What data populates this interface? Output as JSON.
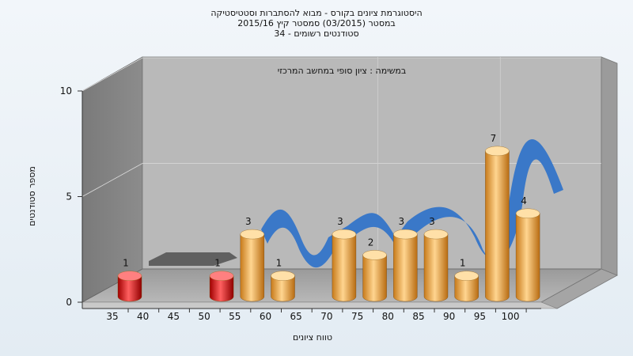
{
  "titles": {
    "line1": "היסטוגרמת ציונים בקורס - מבוא להסתברות וסטטיסטיקה",
    "line2": "במסטר (03/2015) סמסטר קיץ 2015/16",
    "line3": "סטודנטים רשומים - 34"
  },
  "chart_data": {
    "type": "bar",
    "title": "היסטוגרמת ציונים בקורס - מבוא להסתברות וסטטיסטיקה",
    "subtitle": [
      "במסטר (03/2015) סמסטר קיץ 2015/16",
      "סטודנטים רשומים - 34"
    ],
    "annotation": "במשימה : ציון סופי במחשב המרכזי",
    "xlabel": "טווח ציונים",
    "ylabel": "מספר סטודנטים",
    "ylim": [
      0,
      10
    ],
    "y_ticks": [
      0,
      5,
      10
    ],
    "x_ticks": [
      35,
      40,
      45,
      50,
      55,
      60,
      65,
      70,
      75,
      80,
      85,
      90,
      95,
      100
    ],
    "bars": [
      {
        "x": 35,
        "value": 1,
        "color": "#e01010"
      },
      {
        "x": 50,
        "value": 1,
        "color": "#e01010"
      },
      {
        "x": 55,
        "value": 3,
        "color": "#f0a030"
      },
      {
        "x": 60,
        "value": 1,
        "color": "#f0a030"
      },
      {
        "x": 70,
        "value": 3,
        "color": "#f0a030"
      },
      {
        "x": 75,
        "value": 2,
        "color": "#f0a030"
      },
      {
        "x": 80,
        "value": 3,
        "color": "#f0a030"
      },
      {
        "x": 85,
        "value": 3,
        "color": "#f0a030"
      },
      {
        "x": 90,
        "value": 1,
        "color": "#f0a030"
      },
      {
        "x": 95,
        "value": 7,
        "color": "#f0a030"
      },
      {
        "x": 100,
        "value": 4,
        "color": "#f0a030"
      }
    ],
    "grid": true,
    "style": "3d",
    "colors": {
      "fail": "#e01010",
      "pass": "#f0a030",
      "curve": "#3a78c8",
      "flat": "#606060"
    }
  }
}
